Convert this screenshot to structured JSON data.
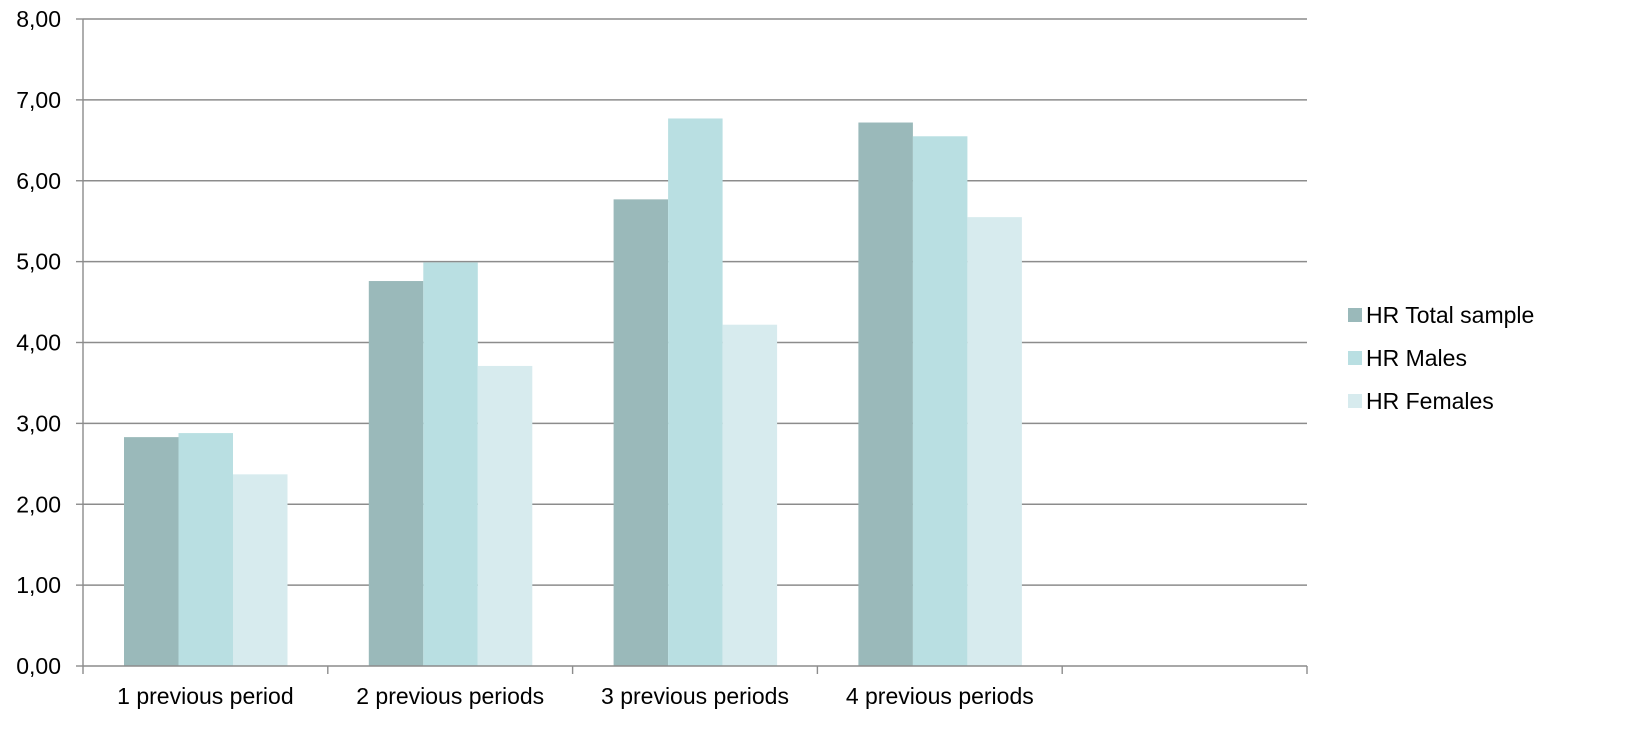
{
  "chart_data": {
    "type": "bar",
    "title": "",
    "xlabel": "",
    "ylabel": "",
    "categories": [
      "1 previous period",
      "2 previous periods",
      "3 previous periods",
      "4 previous periods",
      ""
    ],
    "series": [
      {
        "name": "HR Total sample",
        "color": "#9ab9ba",
        "values": [
          2.83,
          4.76,
          5.77,
          6.72,
          null
        ]
      },
      {
        "name": "HR Males",
        "color": "#b9dfe2",
        "values": [
          2.88,
          4.99,
          6.77,
          6.55,
          null
        ]
      },
      {
        "name": "HR Females",
        "color": "#d7ebee",
        "values": [
          2.37,
          3.71,
          4.22,
          5.55,
          null
        ]
      }
    ],
    "ylim": [
      0,
      8
    ],
    "yticks": [
      "0,00",
      "1,00",
      "2,00",
      "3,00",
      "4,00",
      "5,00",
      "6,00",
      "7,00",
      "8,00"
    ],
    "grid": true,
    "legend_position": "right",
    "gridline_color": "#8c8c8c"
  }
}
